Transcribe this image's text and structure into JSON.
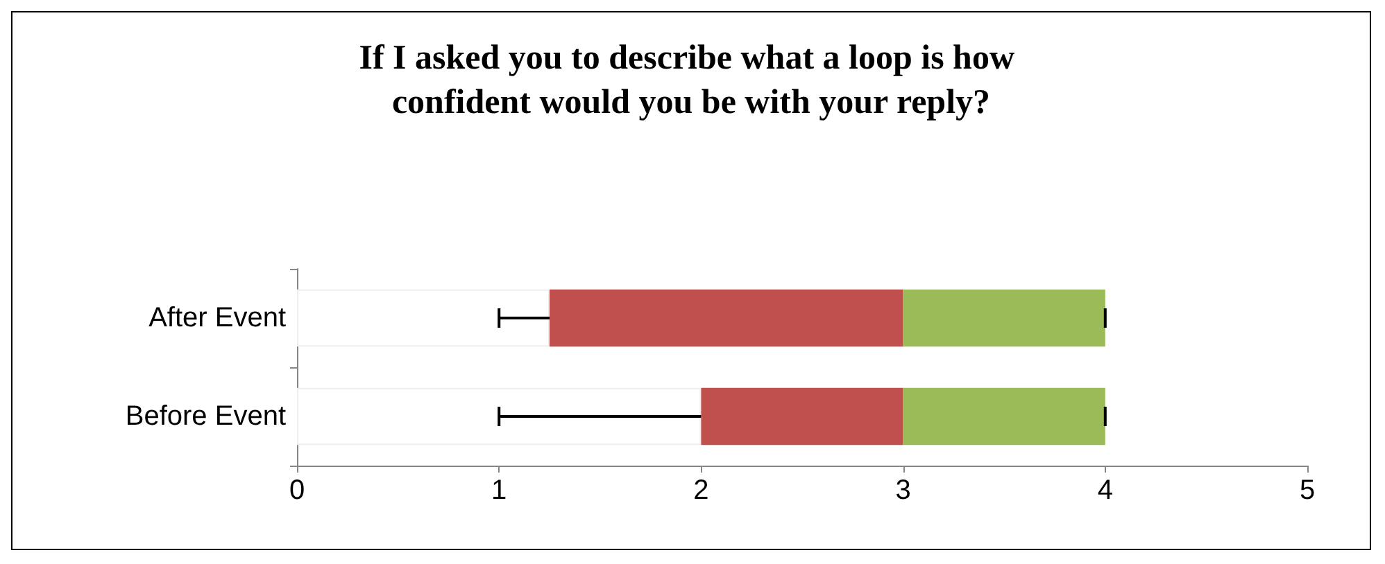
{
  "chart_data": {
    "type": "bar",
    "title": "If I asked you to describe what a loop is how confident would you be with your reply?",
    "orientation": "horizontal",
    "stacked": true,
    "categories": [
      "After Event",
      "Before Event"
    ],
    "series": [
      {
        "color": "#ffffff",
        "values": [
          1.25,
          2
        ],
        "errors": [
          [
            1,
            1.25
          ],
          [
            1,
            2
          ]
        ]
      },
      {
        "color": "#c0504d",
        "values": [
          1.75,
          1
        ]
      },
      {
        "color": "#9bbb59",
        "values": [
          1,
          1
        ],
        "errors": [
          [
            4,
            4
          ],
          [
            4,
            4
          ]
        ]
      }
    ],
    "xlim": [
      0,
      5
    ],
    "xticks": [
      0,
      1,
      2,
      3,
      4,
      5
    ],
    "grid": false
  }
}
